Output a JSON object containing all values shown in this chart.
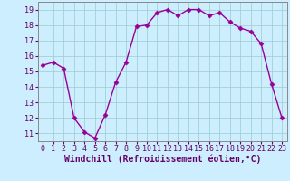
{
  "x": [
    0,
    1,
    2,
    3,
    4,
    5,
    6,
    7,
    8,
    9,
    10,
    11,
    12,
    13,
    14,
    15,
    16,
    17,
    18,
    19,
    20,
    21,
    22,
    23
  ],
  "y": [
    15.4,
    15.6,
    15.2,
    12.0,
    11.1,
    10.7,
    12.2,
    14.3,
    15.6,
    17.9,
    18.0,
    18.8,
    19.0,
    18.6,
    19.0,
    19.0,
    18.6,
    18.8,
    18.2,
    17.8,
    17.6,
    16.8,
    14.2,
    12.0
  ],
  "line_color": "#990099",
  "marker": "D",
  "marker_size": 2.5,
  "bg_color": "#cceeff",
  "grid_color": "#99cccc",
  "xlabel": "Windchill (Refroidissement éolien,°C)",
  "xlabel_fontsize": 7,
  "xlim": [
    -0.5,
    23.5
  ],
  "ylim": [
    10.5,
    19.5
  ],
  "yticks": [
    11,
    12,
    13,
    14,
    15,
    16,
    17,
    18,
    19
  ],
  "xticks": [
    0,
    1,
    2,
    3,
    4,
    5,
    6,
    7,
    8,
    9,
    10,
    11,
    12,
    13,
    14,
    15,
    16,
    17,
    18,
    19,
    20,
    21,
    22,
    23
  ],
  "tick_fontsize": 6,
  "spine_color": "#888888",
  "linewidth": 1.0
}
